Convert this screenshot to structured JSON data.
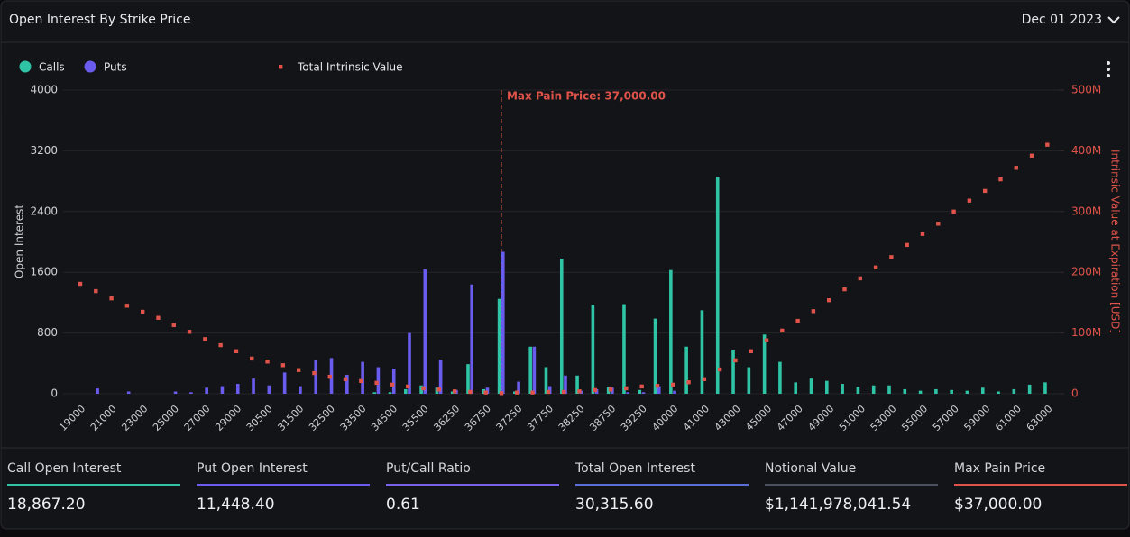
{
  "header": {
    "title": "Open Interest By Strike Price",
    "date": "Dec 01 2023"
  },
  "chart_data": {
    "type": "bar",
    "categories": [
      19000,
      null,
      21000,
      null,
      23000,
      null,
      25000,
      null,
      27000,
      null,
      29000,
      null,
      30500,
      null,
      31500,
      null,
      32500,
      null,
      33500,
      null,
      34500,
      null,
      35500,
      null,
      36250,
      null,
      36750,
      null,
      37250,
      null,
      37750,
      null,
      38250,
      null,
      38750,
      null,
      39250,
      null,
      40000,
      null,
      41000,
      null,
      43000,
      null,
      45000,
      null,
      47000,
      null,
      49000,
      null,
      51000,
      null,
      53000,
      null,
      55000,
      null,
      57000,
      null,
      59000,
      null,
      61000,
      null,
      63000
    ],
    "series": [
      {
        "name": "Calls",
        "color": "#2ec4a5",
        "values": [
          0,
          0,
          0,
          0,
          0,
          0,
          0,
          0,
          0,
          0,
          0,
          0,
          0,
          0,
          0,
          0,
          0,
          0,
          0,
          20,
          20,
          60,
          110,
          80,
          30,
          390,
          60,
          1250,
          30,
          620,
          350,
          1780,
          240,
          1170,
          90,
          1180,
          50,
          990,
          1630,
          620,
          1100,
          2860,
          580,
          350,
          780,
          420,
          150,
          200,
          170,
          130,
          90,
          110,
          110,
          60,
          40,
          60,
          50,
          40,
          80,
          30,
          60,
          120,
          150
        ]
      },
      {
        "name": "Puts",
        "color": "#6b5cf0",
        "values": [
          0,
          70,
          0,
          30,
          0,
          0,
          30,
          20,
          80,
          100,
          130,
          200,
          110,
          280,
          100,
          440,
          470,
          250,
          420,
          350,
          330,
          800,
          1640,
          450,
          50,
          1440,
          80,
          1870,
          160,
          620,
          100,
          240,
          40,
          60,
          80,
          20,
          20,
          100,
          40,
          0,
          0,
          0,
          0,
          0,
          0,
          0,
          0,
          0,
          0,
          0,
          0,
          0,
          0,
          0,
          0,
          0,
          0,
          0,
          0,
          0,
          0,
          0,
          0
        ]
      },
      {
        "name": "Total Intrinsic Value",
        "color": "#e0534a",
        "type": "scatter",
        "axis": "y2",
        "values": [
          181000000,
          169000000,
          157000000,
          145000000,
          135000000,
          125000000,
          113000000,
          102000000,
          90000000,
          80000000,
          70000000,
          58000000,
          53000000,
          47000000,
          39000000,
          34000000,
          28000000,
          24000000,
          21000000,
          18000000,
          15000000,
          12000000,
          9000000,
          7000000,
          4000000,
          3000000,
          2000000,
          1000000,
          2000000,
          2000000,
          3000000,
          3000000,
          4000000,
          6000000,
          7000000,
          9000000,
          12000000,
          13000000,
          15000000,
          19000000,
          24000000,
          40000000,
          55000000,
          70000000,
          88000000,
          104000000,
          120000000,
          136000000,
          154000000,
          172000000,
          190000000,
          208000000,
          225000000,
          245000000,
          263000000,
          280000000,
          300000000,
          318000000,
          334000000,
          353000000,
          372000000,
          392000000,
          410000000
        ]
      }
    ],
    "ylim": [
      0,
      4000
    ],
    "yticks": [
      0,
      800,
      1600,
      2400,
      3200,
      4000
    ],
    "y2lim": [
      0,
      500000000
    ],
    "y2ticks": [
      0,
      {
        "value": 100000000,
        "label": "100M"
      },
      {
        "value": 200000000,
        "label": "200M"
      },
      {
        "value": 300000000,
        "label": "300M"
      },
      {
        "value": 400000000,
        "label": "400M"
      },
      {
        "value": 500000000,
        "label": "500M"
      }
    ],
    "ylabel": "Open Interest",
    "y2label": "Intrinsic Value at Expiration [USD]",
    "annotation": {
      "text": "Max Pain Price: 37,000.00",
      "x": 37000,
      "color": "#e0534a"
    },
    "grid": true
  },
  "summary": [
    {
      "label": "Call Open Interest",
      "value": "18,867.20",
      "color": "#2ec4a5"
    },
    {
      "label": "Put Open Interest",
      "value": "11,448.40",
      "color": "#6b5cf0"
    },
    {
      "label": "Put/Call Ratio",
      "value": "0.61",
      "color": "#7a62e8"
    },
    {
      "label": "Total Open Interest",
      "value": "30,315.60",
      "color": "#5a6fd8"
    },
    {
      "label": "Notional Value",
      "value": "$1,141,978,041.54",
      "color": "#4a5262"
    },
    {
      "label": "Max Pain Price",
      "value": "$37,000.00",
      "color": "#e0534a"
    }
  ]
}
